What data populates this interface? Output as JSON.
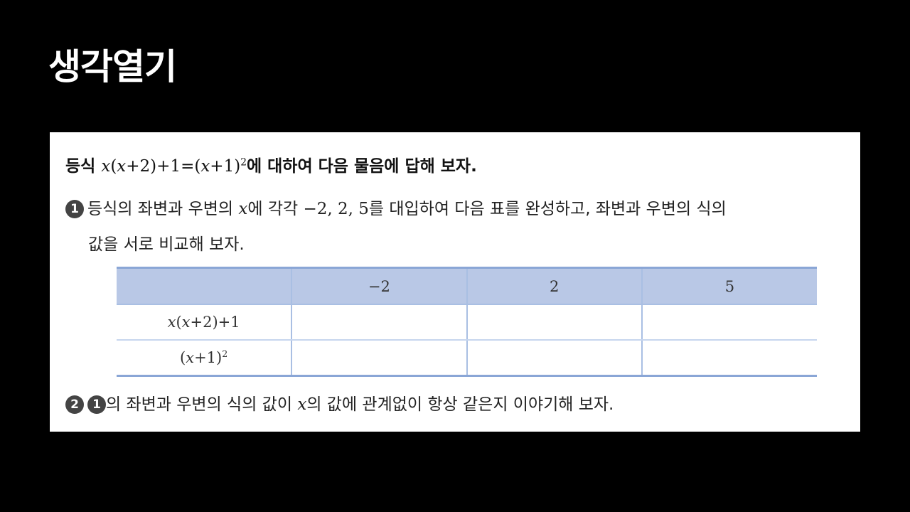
{
  "title": "생각열기",
  "heading": {
    "prefix": "등식 ",
    "suffix": "에 대하여 다음 물음에 답해 보자."
  },
  "q1": {
    "badge": "1",
    "text_a1": "등식의 좌변과 우변의 ",
    "text_a2": "에 각각 ",
    "values": "−2, 2, 5",
    "text_a3": "를 대입하여 다음 표를 완성하고, 좌변과 우변의 식의",
    "text_b": "값을 서로 비교해 보자."
  },
  "table": {
    "headers": [
      "",
      "−2",
      "2",
      "5"
    ],
    "rows": [
      {
        "label": "x(x+2)+1",
        "cells": [
          "",
          "",
          ""
        ]
      },
      {
        "label": "(x+1)²",
        "cells": [
          "",
          "",
          ""
        ]
      }
    ]
  },
  "q2": {
    "badge": "2",
    "ref_badge": "1",
    "text_1": "의 좌변과 우변의 식의 값이 ",
    "text_2": "의 값에 관계없이 항상 같은지 이야기해 보자."
  },
  "variable": "x",
  "colors": {
    "background": "#000000",
    "panel": "#ffffff",
    "table_header": "#b9c8e6",
    "table_border": "#8aa6d6"
  }
}
